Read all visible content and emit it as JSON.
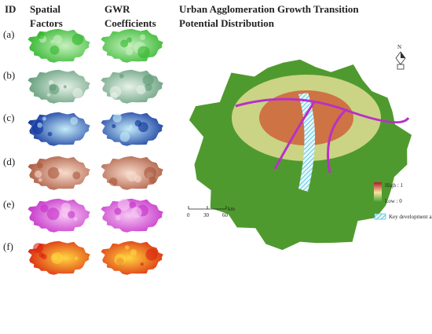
{
  "header": {
    "id": "ID",
    "columns": [
      {
        "lines": [
          "Spatial",
          "Factors"
        ]
      },
      {
        "lines": [
          "GWR",
          "Coefficients"
        ]
      },
      {
        "lines": [
          "Urban Agglomeration Growth Transition",
          "Potential Distribution"
        ]
      }
    ]
  },
  "rows": [
    {
      "label": "(a)"
    },
    {
      "label": "(b)"
    },
    {
      "label": "(c)"
    },
    {
      "label": "(d)"
    },
    {
      "label": "(e)"
    },
    {
      "label": "(f)"
    }
  ],
  "map": {
    "north": "N",
    "legend": {
      "high": "High : 1",
      "low": "Low : 0",
      "area": "Key development area"
    },
    "scale": {
      "ticks": [
        "0",
        "30",
        "60"
      ],
      "unit": "km"
    }
  }
}
